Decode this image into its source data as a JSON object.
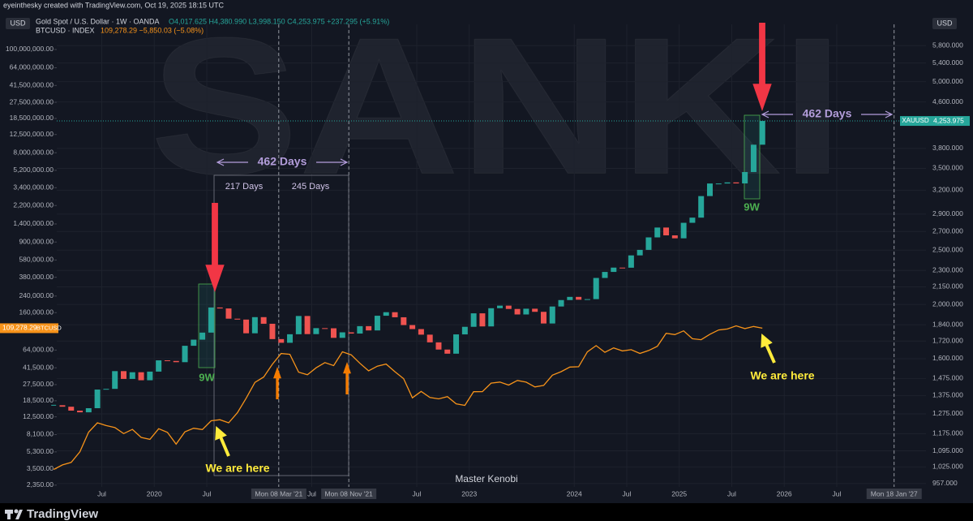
{
  "header": {
    "credit": "eyeinthesky created with TradingView.com, Oct 19, 2025 18:15 UTC",
    "left_currency": "USD",
    "right_currency": "USD"
  },
  "chart_data": {
    "type": "candlestick",
    "watermark": "SANKI",
    "x": [
      "2019-01",
      "2019-02",
      "2019-03",
      "2019-04",
      "2019-05",
      "2019-06",
      "2019-07",
      "2019-08",
      "2019-09",
      "2019-10",
      "2019-11",
      "2019-12",
      "2020-01",
      "2020-02",
      "2020-03",
      "2020-04",
      "2020-05",
      "2020-06",
      "2020-07",
      "2020-08",
      "2020-09",
      "2020-10",
      "2020-11",
      "2020-12",
      "2021-01",
      "2021-02",
      "2021-03",
      "2021-04",
      "2021-05",
      "2021-06",
      "2021-07",
      "2021-08",
      "2021-09",
      "2021-10",
      "2021-11",
      "2021-12",
      "2022-01",
      "2022-02",
      "2022-03",
      "2022-04",
      "2022-05",
      "2022-06",
      "2022-07",
      "2022-08",
      "2022-09",
      "2022-10",
      "2022-11",
      "2022-12",
      "2023-01",
      "2023-02",
      "2023-03",
      "2023-04",
      "2023-05",
      "2023-06",
      "2023-07",
      "2023-08",
      "2023-09",
      "2023-10",
      "2023-11",
      "2023-12",
      "2024-01",
      "2024-02",
      "2024-03",
      "2024-04",
      "2024-05",
      "2024-06",
      "2024-07",
      "2024-08",
      "2024-09",
      "2024-10",
      "2024-11",
      "2024-12",
      "2025-01",
      "2025-02",
      "2025-03",
      "2025-04",
      "2025-05",
      "2025-06",
      "2025-07",
      "2025-08",
      "2025-09",
      "2025-10"
    ],
    "xlim": [
      "2019-01-27",
      "2027-05-07"
    ],
    "xticks": [
      {
        "value": "2019-07-01",
        "label": "Jul"
      },
      {
        "value": "2020-01-01",
        "label": "2020"
      },
      {
        "value": "2020-07-01",
        "label": "Jul"
      },
      {
        "value": "2021-03-08",
        "label": "Mon 08 Mar '21"
      },
      {
        "value": "2021-07-01",
        "label": "Jul"
      },
      {
        "value": "2021-11-08",
        "label": "Mon 08 Nov '21"
      },
      {
        "value": "2022-07-01",
        "label": "Jul"
      },
      {
        "value": "2023-01-01",
        "label": "2023"
      },
      {
        "value": "2024-01-01",
        "label": "2024"
      },
      {
        "value": "2024-07-01",
        "label": "Jul"
      },
      {
        "value": "2025-01-01",
        "label": "2025"
      },
      {
        "value": "2025-07-01",
        "label": "Jul"
      },
      {
        "value": "2026-01-01",
        "label": "2026"
      },
      {
        "value": "2026-07-01",
        "label": "Jul"
      },
      {
        "value": "2027-01-18",
        "label": "Mon 18 Jan '27"
      }
    ],
    "vlines": [
      "2021-03-08",
      "2021-11-08",
      "2027-01-18"
    ],
    "ylim": [
      2250,
      185000000
    ],
    "ylog": true,
    "yticks": [
      {
        "value": 100000000,
        "label": "100,000,000.00"
      },
      {
        "value": 64000000,
        "label": "64,000,000.00"
      },
      {
        "value": 41500000,
        "label": "41,500,000.00"
      },
      {
        "value": 27500000,
        "label": "27,500,000.00"
      },
      {
        "value": 18500000,
        "label": "18,500,000.00"
      },
      {
        "value": 12500000,
        "label": "12,500,000.00"
      },
      {
        "value": 8000000,
        "label": "8,000,000.00"
      },
      {
        "value": 5200000,
        "label": "5,200,000.00"
      },
      {
        "value": 3400000,
        "label": "3,400,000.00"
      },
      {
        "value": 2200000,
        "label": "2,200,000.00"
      },
      {
        "value": 1400000,
        "label": "1,400,000.00"
      },
      {
        "value": 900000,
        "label": "900,000.00"
      },
      {
        "value": 580000,
        "label": "580,000.00"
      },
      {
        "value": 380000,
        "label": "380,000.00"
      },
      {
        "value": 240000,
        "label": "240,000.00"
      },
      {
        "value": 160000,
        "label": "160,000.00"
      },
      {
        "value": 64000,
        "label": "64,000.00"
      },
      {
        "value": 41500,
        "label": "41,500.00"
      },
      {
        "value": 27500,
        "label": "27,500.00"
      },
      {
        "value": 18500,
        "label": "18,500.00"
      },
      {
        "value": 12500,
        "label": "12,500.00"
      },
      {
        "value": 8100,
        "label": "8,100.00"
      },
      {
        "value": 5300,
        "label": "5,300.00"
      },
      {
        "value": 3500,
        "label": "3,500.00"
      },
      {
        "value": 2350,
        "label": "2,350.00"
      }
    ],
    "y2lim": [
      944,
      6330
    ],
    "y2log": true,
    "y2ticks": [
      {
        "value": 5800,
        "label": "5,800.000"
      },
      {
        "value": 5400,
        "label": "5,400.000"
      },
      {
        "value": 5000,
        "label": "5,000.000"
      },
      {
        "value": 4600,
        "label": "4,600.000"
      },
      {
        "value": 3800,
        "label": "3,800.000"
      },
      {
        "value": 3500,
        "label": "3,500.000"
      },
      {
        "value": 3200,
        "label": "3,200.000"
      },
      {
        "value": 2900,
        "label": "2,900.000"
      },
      {
        "value": 2700,
        "label": "2,700.000"
      },
      {
        "value": 2500,
        "label": "2,500.000"
      },
      {
        "value": 2300,
        "label": "2,300.000"
      },
      {
        "value": 2150,
        "label": "2,150.000"
      },
      {
        "value": 2000,
        "label": "2,000.000"
      },
      {
        "value": 1840,
        "label": "1,840.000"
      },
      {
        "value": 1720,
        "label": "1,720.000"
      },
      {
        "value": 1600,
        "label": "1,600.000"
      },
      {
        "value": 1475,
        "label": "1,475.000"
      },
      {
        "value": 1375,
        "label": "1,375.000"
      },
      {
        "value": 1275,
        "label": "1,275.000"
      },
      {
        "value": 1175,
        "label": "1,175.000"
      },
      {
        "value": 1095,
        "label": "1,095.000"
      },
      {
        "value": 1025,
        "label": "1,025.000"
      },
      {
        "value": 957,
        "label": "957.000"
      }
    ],
    "grid": true,
    "series": [
      {
        "name": "XAUUSD",
        "legend": "Gold Spot / U.S. Dollar · 1W · OANDA",
        "quote": "O4,017.625 H4,380.990 L3,998.150 C4,253.975 +237.295 (+5.91%)",
        "type": "candlestick",
        "axis": "y2",
        "up_color": "#26a69a",
        "down_color": "#ef5350",
        "last_label": "4,253.975",
        "values": [
          1321,
          1313,
          1292,
          1283,
          1305,
          1409,
          1413,
          1520,
          1472,
          1513,
          1464,
          1517,
          1589,
          1585,
          1577,
          1687,
          1730,
          1781,
          1975,
          1967,
          1886,
          1879,
          1776,
          1898,
          1847,
          1734,
          1708,
          1769,
          1907,
          1770,
          1814,
          1813,
          1743,
          1783,
          1774,
          1829,
          1797,
          1909,
          1937,
          1897,
          1837,
          1807,
          1766,
          1711,
          1661,
          1633,
          1768,
          1824,
          1928,
          1827,
          1969,
          1990,
          1963,
          1919,
          1965,
          1940,
          1849,
          1983,
          2036,
          2063,
          2039,
          2044,
          2230,
          2286,
          2327,
          2326,
          2447,
          2503,
          2635,
          2744,
          2657,
          2625,
          2798,
          2858,
          3123,
          3289,
          3289,
          3304,
          3290,
          3448,
          3858,
          4253.975
        ]
      },
      {
        "name": "BTCUSD",
        "legend": "BTCUSD · INDEX",
        "quote": "109,278.29 −5,850.03 (−5.08%)",
        "type": "line",
        "axis": "y",
        "color": "#f7931a",
        "last_label": "109,278.29",
        "values": [
          3450,
          3850,
          4100,
          5300,
          8600,
          10800,
          10100,
          9600,
          8300,
          9200,
          7550,
          7200,
          9350,
          8550,
          6400,
          8650,
          9450,
          9150,
          11350,
          11650,
          10800,
          13800,
          19700,
          29000,
          33100,
          45200,
          58900,
          57700,
          37300,
          35000,
          41500,
          47100,
          43800,
          61300,
          57000,
          46300,
          38500,
          43200,
          45500,
          37700,
          31800,
          19900,
          23300,
          20050,
          19400,
          20500,
          17200,
          16550,
          23100,
          23150,
          28500,
          29250,
          27200,
          30450,
          29200,
          25950,
          26950,
          34650,
          37700,
          42250,
          42600,
          61200,
          71300,
          60600,
          67500,
          62700,
          64600,
          58950,
          63300,
          70200,
          96400,
          93400,
          102400,
          84400,
          82500,
          94200,
          104600,
          107100,
          115800,
          108200,
          114000,
          109278.29
        ]
      }
    ],
    "annotations": [
      {
        "text": "462 Days"
      },
      {
        "text": "217 Days"
      },
      {
        "text": "245 Days"
      },
      {
        "text": "462 Days"
      },
      {
        "text": "9W"
      },
      {
        "text": "9W"
      },
      {
        "text": "We are here"
      },
      {
        "text": "We are here"
      },
      {
        "text": "Master Kenobi"
      }
    ]
  },
  "footer": {
    "brand": "TradingView"
  }
}
